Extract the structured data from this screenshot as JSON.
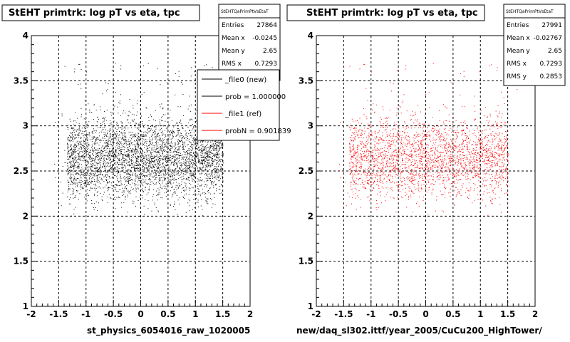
{
  "chart_data": [
    {
      "type": "scatter",
      "title": "StEHT primtrk: log pT vs eta, tpc",
      "xlabel": "st_physics_6054016_raw_1020005",
      "ylabel": "",
      "xlim": [
        -2,
        2
      ],
      "ylim": [
        1,
        4
      ],
      "x_ticks": [
        "-2",
        "-1.5",
        "-1",
        "-0.5",
        "0",
        "0.5",
        "1",
        "1.5",
        "2"
      ],
      "y_ticks": [
        "1",
        "1.5",
        "2",
        "2.5",
        "3",
        "3.5",
        "4"
      ],
      "grid": true,
      "color": "#000000",
      "series": [
        {
          "name": "_file0 (new)",
          "x_range": [
            -1.35,
            1.5
          ],
          "y_range": [
            2.0,
            3.5
          ],
          "y_center": 2.65
        }
      ],
      "stats": {
        "header": "StEHTQaPrimPtVsEtaT",
        "rows": [
          {
            "label": "Entries",
            "value": "27864"
          },
          {
            "label": "Mean x",
            "value": "-0.0245"
          },
          {
            "label": "Mean y",
            "value": "2.65"
          },
          {
            "label": "RMS x",
            "value": "0.7293"
          }
        ]
      },
      "legend": {
        "placement": "top-right",
        "entries": [
          {
            "label": "_file0 (new)",
            "color": "#000000"
          },
          {
            "label": "prob = 1.000000",
            "color": "#000000"
          },
          {
            "label": "_file1 (ref)",
            "color": "#ff0000"
          },
          {
            "label": "probN = 0.901839",
            "color": "#ff0000"
          }
        ]
      }
    },
    {
      "type": "scatter",
      "title": "StEHT primtrk: log pT vs eta, tpc",
      "xlabel": "new/daq_sl302.ittf/year_2005/CuCu200_HighTower/",
      "ylabel": "",
      "xlim": [
        -2,
        2
      ],
      "ylim": [
        1,
        4
      ],
      "x_ticks": [
        "-2",
        "-1.5",
        "-1",
        "-0.5",
        "0",
        "0.5",
        "1",
        "1.5",
        "2"
      ],
      "y_ticks": [
        "1",
        "1.5",
        "2",
        "2.5",
        "3",
        "3.5",
        "4"
      ],
      "grid": true,
      "color": "#ff0000",
      "series": [
        {
          "name": "_file1 (ref)",
          "x_range": [
            -1.4,
            1.5
          ],
          "y_range": [
            2.0,
            3.5
          ],
          "y_center": 2.65
        }
      ],
      "stats": {
        "header": "StEHTQaPrimPtVsEtaT",
        "rows": [
          {
            "label": "Entries",
            "value": "27991"
          },
          {
            "label": "Mean x",
            "value": "-0.02767"
          },
          {
            "label": "Mean y",
            "value": "2.65"
          },
          {
            "label": "RMS x",
            "value": "0.7293"
          },
          {
            "label": "RMS y",
            "value": "0.2853"
          }
        ]
      }
    }
  ]
}
